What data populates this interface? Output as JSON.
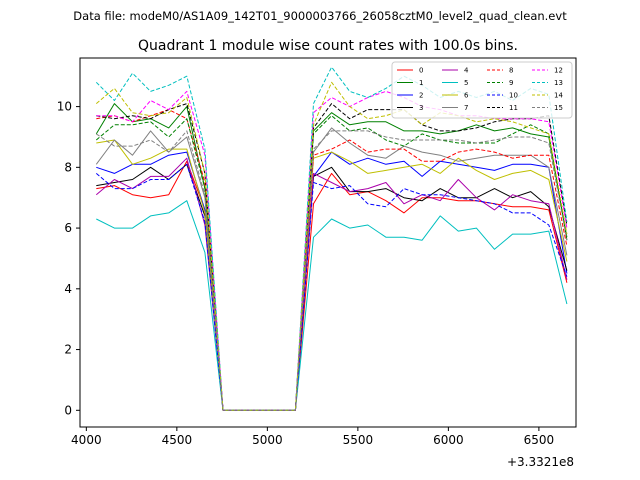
{
  "figure": {
    "suptitle": "Data file: modeM0/AS1A09_142T01_9000003766_26058cztM0_level2_quad_clean.evt",
    "title": "Quadrant 1 module wise count rates with 100.0s bins."
  },
  "chart_data": {
    "type": "line",
    "title": "Quadrant 1 module wise count rates with 100.0s bins.",
    "xlabel": "",
    "ylabel": "",
    "x_offset_label": "+3.3321e8",
    "xlim": [
      3965,
      6705
    ],
    "ylim": [
      -0.55,
      11.6
    ],
    "xticks": [
      4000,
      4500,
      5000,
      5500,
      6000,
      6500
    ],
    "yticks": [
      0,
      2,
      4,
      6,
      8,
      10
    ],
    "grid": false,
    "legend_position": "top-right",
    "legend_columns": 4,
    "x": [
      4055,
      4155,
      4255,
      4355,
      4455,
      4555,
      4655,
      4755,
      4855,
      4955,
      5055,
      5155,
      5255,
      5355,
      5455,
      5555,
      5655,
      5755,
      5855,
      5955,
      6055,
      6155,
      6255,
      6355,
      6455,
      6555,
      6655
    ],
    "series": [
      {
        "name": "0",
        "color": "#ff0000",
        "dash": "solid",
        "values": [
          7.3,
          7.4,
          7.1,
          7.0,
          7.1,
          8.2,
          6.6,
          0,
          0,
          0,
          0,
          0,
          6.8,
          7.8,
          7.1,
          7.2,
          6.9,
          6.5,
          7.0,
          7.0,
          6.9,
          6.9,
          6.8,
          6.7,
          6.7,
          6.6,
          4.2
        ]
      },
      {
        "name": "1",
        "color": "#008000",
        "dash": "solid",
        "values": [
          9.1,
          10.1,
          9.5,
          9.6,
          9.3,
          10.0,
          7.3,
          0,
          0,
          0,
          0,
          0,
          9.2,
          9.8,
          9.4,
          9.5,
          9.5,
          9.2,
          9.2,
          9.1,
          9.2,
          9.4,
          9.2,
          9.3,
          9.1,
          9.0,
          5.7
        ]
      },
      {
        "name": "2",
        "color": "#0000ff",
        "dash": "solid",
        "values": [
          8.0,
          7.8,
          8.1,
          8.1,
          8.4,
          8.5,
          6.6,
          0,
          0,
          0,
          0,
          0,
          7.7,
          8.5,
          8.1,
          8.3,
          8.1,
          8.2,
          7.7,
          8.2,
          8.1,
          8.0,
          7.9,
          8.1,
          8.1,
          8.0,
          4.5
        ]
      },
      {
        "name": "3",
        "color": "#000000",
        "dash": "solid",
        "values": [
          7.4,
          7.5,
          7.6,
          8.0,
          7.6,
          8.1,
          6.4,
          0,
          0,
          0,
          0,
          0,
          7.7,
          8.0,
          7.2,
          7.2,
          7.3,
          7.0,
          6.9,
          7.3,
          7.0,
          7.0,
          7.3,
          7.0,
          7.2,
          6.7,
          4.6
        ]
      },
      {
        "name": "4",
        "color": "#aa00aa",
        "dash": "solid",
        "values": [
          7.1,
          7.6,
          7.3,
          7.7,
          7.7,
          8.3,
          6.1,
          0,
          0,
          0,
          0,
          0,
          7.8,
          7.5,
          7.2,
          7.3,
          7.5,
          6.8,
          7.1,
          6.9,
          7.6,
          7.0,
          6.6,
          7.1,
          6.9,
          6.8,
          4.3
        ]
      },
      {
        "name": "5",
        "color": "#00bfbf",
        "dash": "solid",
        "values": [
          6.3,
          6.0,
          6.0,
          6.4,
          6.5,
          6.9,
          5.2,
          0,
          0,
          0,
          0,
          0,
          5.7,
          6.3,
          6.0,
          6.1,
          5.7,
          5.7,
          5.6,
          6.4,
          5.9,
          6.0,
          5.3,
          5.8,
          5.8,
          5.9,
          3.5
        ]
      },
      {
        "name": "6",
        "color": "#bfbf00",
        "dash": "solid",
        "values": [
          8.8,
          8.9,
          8.1,
          8.3,
          8.6,
          8.6,
          6.5,
          0,
          0,
          0,
          0,
          0,
          8.3,
          8.5,
          8.2,
          7.8,
          7.9,
          8.0,
          8.1,
          7.8,
          8.3,
          7.9,
          7.6,
          7.8,
          7.9,
          7.6,
          4.9
        ]
      },
      {
        "name": "7",
        "color": "#808080",
        "dash": "solid",
        "values": [
          8.1,
          8.9,
          8.4,
          9.2,
          8.5,
          9.0,
          7.0,
          0,
          0,
          0,
          0,
          0,
          8.5,
          9.3,
          8.8,
          8.4,
          8.3,
          8.7,
          8.5,
          8.4,
          8.2,
          8.3,
          8.4,
          8.4,
          8.4,
          8.0,
          5.1
        ]
      },
      {
        "name": "8",
        "color": "#ff0000",
        "dash": "dashed",
        "values": [
          9.6,
          9.7,
          9.5,
          9.7,
          9.9,
          9.6,
          7.5,
          0,
          0,
          0,
          0,
          0,
          8.4,
          8.6,
          8.9,
          8.5,
          8.6,
          8.6,
          8.2,
          8.2,
          8.5,
          8.6,
          8.5,
          8.3,
          8.4,
          8.4,
          5.4
        ]
      },
      {
        "name": "9",
        "color": "#008000",
        "dash": "dashed",
        "values": [
          8.9,
          9.4,
          9.4,
          9.5,
          9.0,
          9.6,
          7.3,
          0,
          0,
          0,
          0,
          0,
          9.1,
          9.7,
          9.2,
          9.3,
          8.9,
          8.7,
          9.1,
          8.9,
          8.8,
          8.8,
          8.8,
          9.1,
          9.4,
          9.1,
          5.6
        ]
      },
      {
        "name": "10",
        "color": "#0000ff",
        "dash": "dashed",
        "values": [
          7.8,
          7.3,
          7.3,
          7.6,
          7.6,
          8.1,
          6.2,
          0,
          0,
          0,
          0,
          0,
          7.5,
          7.3,
          7.4,
          6.8,
          6.7,
          7.3,
          7.1,
          7.1,
          7.0,
          6.9,
          6.8,
          6.5,
          6.5,
          6.1,
          4.4
        ]
      },
      {
        "name": "11",
        "color": "#000000",
        "dash": "dashed",
        "values": [
          9.7,
          9.6,
          9.7,
          9.6,
          9.9,
          10.1,
          7.8,
          0,
          0,
          0,
          0,
          0,
          9.3,
          10.1,
          9.6,
          9.9,
          9.9,
          9.9,
          9.4,
          9.2,
          9.2,
          9.3,
          9.5,
          9.6,
          9.6,
          9.7,
          6.1
        ]
      },
      {
        "name": "12",
        "color": "#ff00ff",
        "dash": "dashed",
        "values": [
          9.7,
          9.7,
          9.5,
          10.2,
          9.9,
          10.5,
          8.4,
          0,
          0,
          0,
          0,
          0,
          9.8,
          10.3,
          10.0,
          10.3,
          10.5,
          10.3,
          10.0,
          9.9,
          9.7,
          9.7,
          9.6,
          9.6,
          9.6,
          9.5,
          6.0
        ]
      },
      {
        "name": "13",
        "color": "#00bfbf",
        "dash": "dashed",
        "values": [
          10.8,
          10.2,
          11.1,
          10.5,
          10.7,
          11.0,
          8.6,
          0,
          0,
          0,
          0,
          0,
          10.1,
          11.3,
          10.5,
          10.3,
          10.6,
          11.0,
          10.7,
          10.3,
          10.5,
          10.3,
          10.5,
          10.2,
          10.6,
          10.4,
          6.2
        ]
      },
      {
        "name": "14",
        "color": "#bfbf00",
        "dash": "dashed",
        "values": [
          10.1,
          10.6,
          9.8,
          9.7,
          9.8,
          10.3,
          7.8,
          0,
          0,
          0,
          0,
          0,
          9.4,
          10.8,
          10.0,
          9.6,
          9.7,
          9.9,
          9.4,
          9.8,
          9.7,
          9.5,
          9.6,
          9.5,
          9.3,
          9.1,
          5.8
        ]
      },
      {
        "name": "15",
        "color": "#808080",
        "dash": "dashed",
        "values": [
          9.1,
          8.7,
          8.7,
          8.9,
          8.5,
          9.2,
          7.1,
          0,
          0,
          0,
          0,
          0,
          8.6,
          9.2,
          9.2,
          9.2,
          9.0,
          8.9,
          8.9,
          8.9,
          8.9,
          8.8,
          8.9,
          9.0,
          9.0,
          8.8,
          5.6
        ]
      }
    ]
  }
}
